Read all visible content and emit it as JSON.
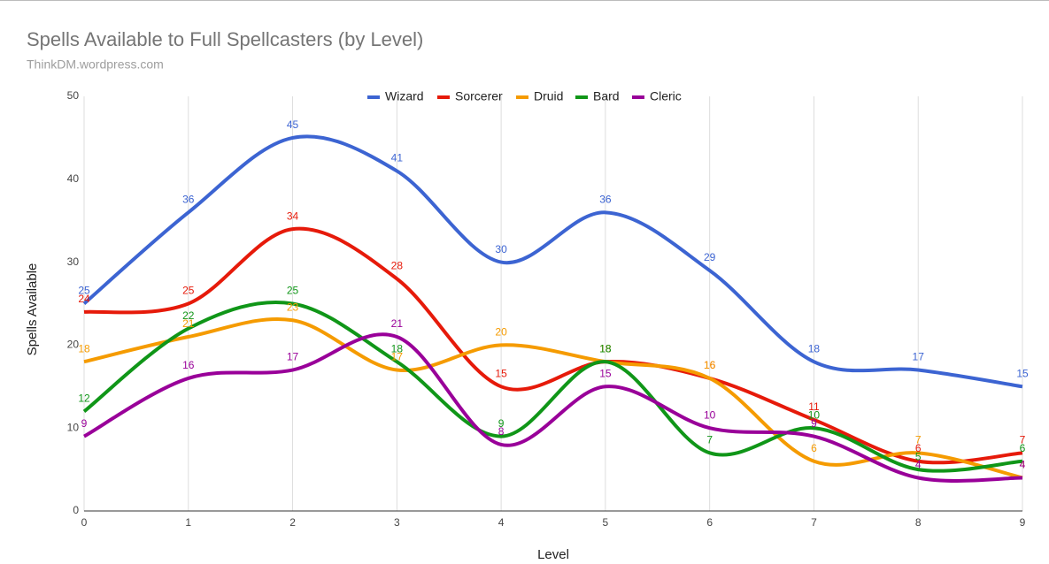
{
  "chart_data": {
    "type": "line",
    "title": "Spells Available to Full Spellcasters (by Level)",
    "subtitle": "ThinkDM.wordpress.com",
    "x_label": "Level",
    "y_label": "Spells Available",
    "x": [
      0,
      1,
      2,
      3,
      4,
      5,
      6,
      7,
      8,
      9
    ],
    "xlim": [
      0,
      9
    ],
    "xticks": [
      0,
      1,
      2,
      3,
      4,
      5,
      6,
      7,
      8,
      9
    ],
    "ylim": [
      0,
      50
    ],
    "yticks": [
      0,
      10,
      20,
      30,
      40,
      50
    ],
    "grid": true,
    "legend": "top",
    "smooth": true,
    "series": [
      {
        "name": "Wizard",
        "color": "#3c64d2",
        "values": [
          25,
          36,
          45,
          41,
          30,
          36,
          29,
          18,
          17,
          15
        ]
      },
      {
        "name": "Sorcerer",
        "color": "#e61a0a",
        "values": [
          24,
          25,
          34,
          28,
          15,
          18,
          16,
          11,
          6,
          7
        ]
      },
      {
        "name": "Druid",
        "color": "#f59b00",
        "values": [
          18,
          21,
          23,
          17,
          20,
          18,
          16,
          6,
          7,
          4
        ]
      },
      {
        "name": "Bard",
        "color": "#109618",
        "values": [
          12,
          22,
          25,
          18,
          9,
          18,
          7,
          10,
          5,
          6
        ]
      },
      {
        "name": "Cleric",
        "color": "#990099",
        "values": [
          9,
          16,
          17,
          21,
          8,
          15,
          10,
          9,
          4,
          4
        ]
      }
    ]
  }
}
